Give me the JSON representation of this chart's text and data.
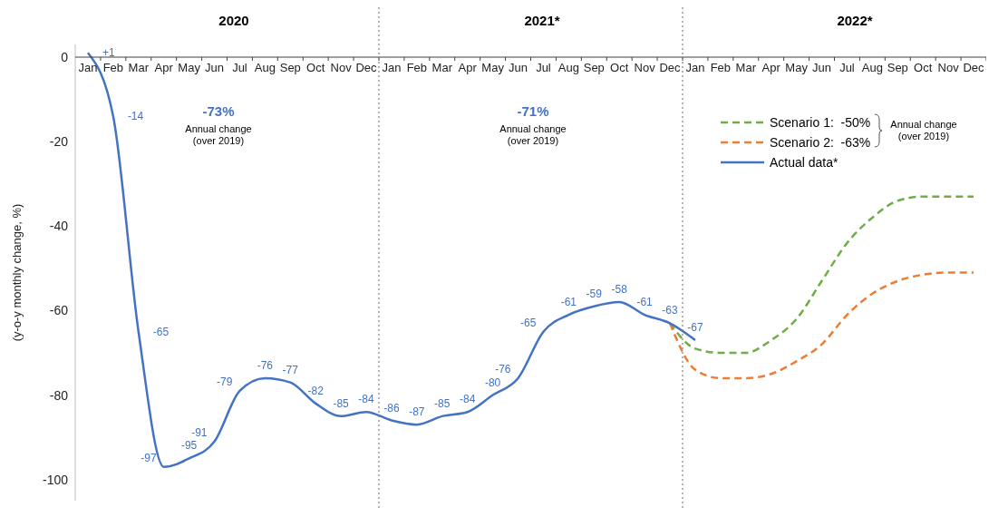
{
  "chart_data": {
    "type": "line",
    "ylabel": "(y-o-y monthly change, %)",
    "categories": [
      "Jan",
      "Feb",
      "Mar",
      "Apr",
      "May",
      "Jun",
      "Jul",
      "Aug",
      "Sep",
      "Oct",
      "Nov",
      "Dec",
      "Jan",
      "Feb",
      "Mar",
      "Apr",
      "May",
      "Jun",
      "Jul",
      "Aug",
      "Sep",
      "Oct",
      "Nov",
      "Dec",
      "Jan",
      "Feb",
      "Mar",
      "Apr",
      "May",
      "Jun",
      "Jul",
      "Aug",
      "Sep",
      "Oct",
      "Nov",
      "Dec"
    ],
    "ylim": [
      -105,
      3
    ],
    "yticks": [
      -100,
      -80,
      -60,
      -40,
      -20,
      0
    ],
    "legend": "top right",
    "marker": "none",
    "series": [
      {
        "name": "Scenario 1:  -50%",
        "color": "#70ad47",
        "line_style": "dashed",
        "values": [
          null,
          null,
          null,
          null,
          null,
          null,
          null,
          null,
          null,
          null,
          null,
          null,
          null,
          null,
          null,
          null,
          null,
          null,
          null,
          null,
          null,
          null,
          null,
          -63,
          -69,
          -70,
          -70,
          -67,
          -62,
          -53,
          -44,
          -38,
          -34,
          -33,
          -33,
          -33
        ]
      },
      {
        "name": "Scenario 2:  -63%",
        "color": "#ed7d31",
        "line_style": "dashed",
        "values": [
          null,
          null,
          null,
          null,
          null,
          null,
          null,
          null,
          null,
          null,
          null,
          null,
          null,
          null,
          null,
          null,
          null,
          null,
          null,
          null,
          null,
          null,
          null,
          -63,
          -74,
          -76,
          -76,
          -75,
          -72,
          -68,
          -61,
          -56,
          -53,
          -51.5,
          -51,
          -51
        ]
      },
      {
        "name": "Actual data*",
        "color": "#4472c4",
        "line_style": "solid",
        "values": [
          1,
          -14,
          -65,
          -97,
          -95,
          -91,
          -79,
          -76,
          -77,
          -82,
          -85,
          -84,
          -86,
          -87,
          -85,
          -84,
          -80,
          -76,
          -65,
          -61,
          -59,
          -58,
          -61,
          -63,
          -67,
          null,
          null,
          null,
          null,
          null,
          null,
          null,
          null,
          null,
          null,
          null
        ],
        "value_labels": [
          "+1",
          "-14",
          "-65",
          "-97",
          "-95",
          "-91",
          "-79",
          "-76",
          "-77",
          "-82",
          "-85",
          "-84",
          "-86",
          "-87",
          "-85",
          "-84",
          "-80",
          "-76",
          "-65",
          "-61",
          "-59",
          "-58",
          "-61",
          "-63",
          "-67",
          null,
          null,
          null,
          null,
          null,
          null,
          null,
          null,
          null,
          null,
          null
        ]
      }
    ],
    "annotations": [
      "2020",
      "2021*",
      "2022*",
      "-73%",
      "Annual change\n(over 2019)",
      "-71%",
      "Annual change\n(over 2019)",
      "Annual change\n(over 2019)"
    ]
  }
}
